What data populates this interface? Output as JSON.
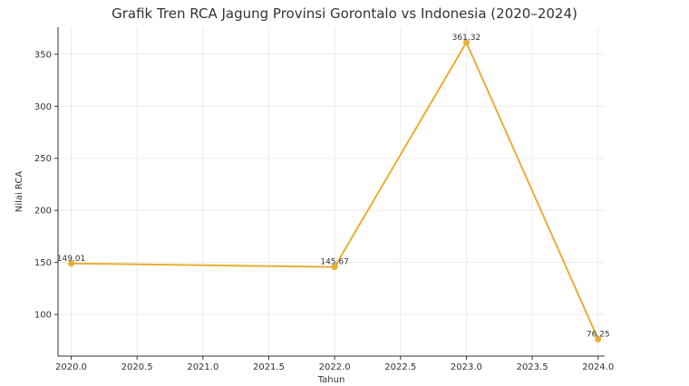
{
  "chart_data": {
    "type": "line",
    "title": "Grafik Tren RCA Jagung Provinsi Gorontalo vs Indonesia (2020–2024)",
    "xlabel": "Tahun",
    "ylabel": "Nilai RCA",
    "xlim": [
      2019.9,
      2024.05
    ],
    "ylim": [
      60,
      376
    ],
    "x_ticks": [
      "2020.0",
      "2020.5",
      "2021.0",
      "2021.5",
      "2022.0",
      "2022.5",
      "2023.0",
      "2023.5",
      "2024.0"
    ],
    "y_ticks": [
      "100",
      "150",
      "200",
      "250",
      "300",
      "350"
    ],
    "grid": true,
    "series": [
      {
        "x": [
          2020,
          2022,
          2023,
          2024
        ],
        "y": [
          149.01,
          145.67,
          361.32,
          76.25
        ],
        "labels": [
          "149.01",
          "145.67",
          "361.32",
          "76.25"
        ],
        "color": "#e8b032"
      }
    ]
  }
}
